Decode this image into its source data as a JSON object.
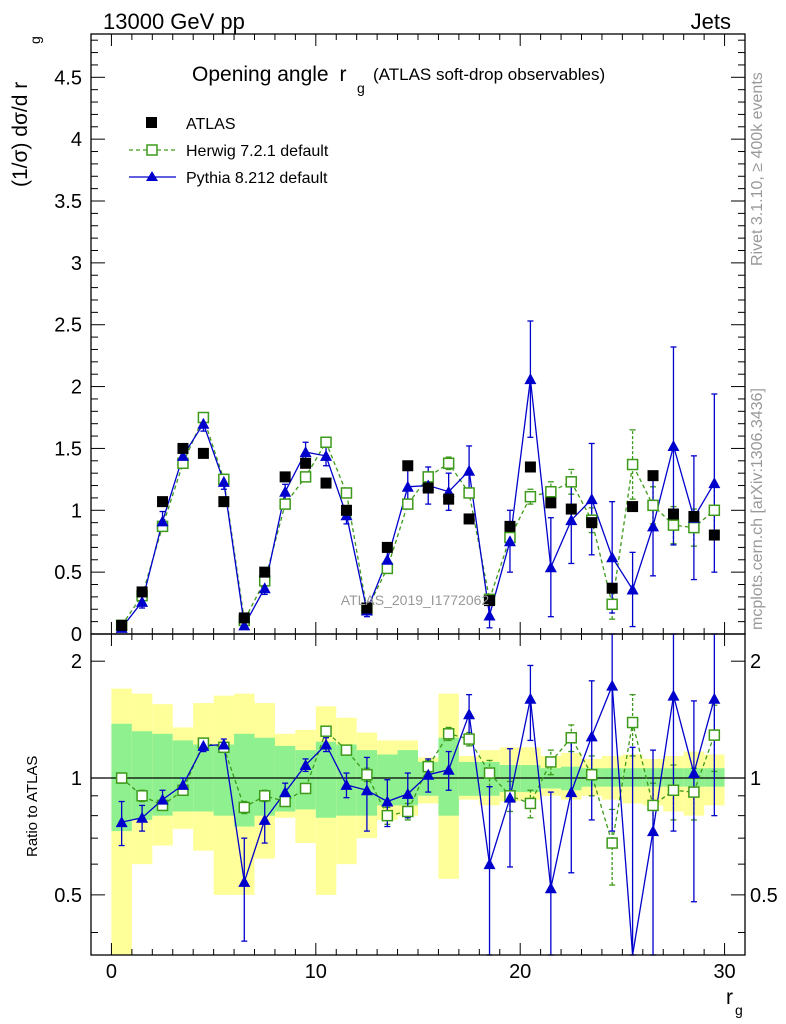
{
  "header": {
    "left": "13000 GeV pp",
    "right": "Jets"
  },
  "side_labels": {
    "rivet": "Rivet 3.1.10, ≥ 400k events",
    "mcplots": "mcplots.cern.ch [arXiv:1306.3436]"
  },
  "chart_data": {
    "type": "scatter",
    "title": "Opening angle",
    "title_symbol": "r",
    "title_subscript": "g",
    "subtitle": "(ATLAS soft-drop observables)",
    "watermark": "ATLAS_2019_I1772062",
    "xlabel": "r",
    "xlabel_sub": "g",
    "ylabel": "(1/σ) dσ/d r",
    "ylabel_sub": "g",
    "ratio_ylabel": "Ratio to ATLAS",
    "xlim": [
      -1,
      31
    ],
    "ylim": [
      0,
      4.85
    ],
    "ratio_ylim": [
      0.35,
      2.35
    ],
    "x_ticks": [
      "0",
      "10",
      "20",
      "30"
    ],
    "y_ticks": [
      "0",
      "0.5",
      "1",
      "1.5",
      "2",
      "2.5",
      "3",
      "3.5",
      "4",
      "4.5"
    ],
    "ratio_ticks": [
      "0.5",
      "1",
      "2"
    ],
    "legend": [
      {
        "name": "ATLAS",
        "color": "#000000",
        "marker": "square-filled"
      },
      {
        "name": "Herwig 7.2.1 default",
        "color": "#3d9a1a",
        "marker": "square-open",
        "dash": true
      },
      {
        "name": "Pythia 8.212 default",
        "color": "#0000cc",
        "marker": "triangle-filled"
      }
    ],
    "x": [
      0.5,
      1.5,
      2.5,
      3.5,
      4.5,
      5.5,
      6.5,
      7.5,
      8.5,
      9.5,
      10.5,
      11.5,
      12.5,
      13.5,
      14.5,
      15.5,
      16.5,
      17.5,
      18.5,
      19.5,
      20.5,
      21.5,
      22.5,
      23.5,
      24.5,
      25.5,
      26.5,
      27.5,
      28.5,
      29.5
    ],
    "atlas": [
      0.07,
      0.34,
      1.07,
      1.5,
      1.46,
      1.07,
      0.13,
      0.5,
      1.27,
      1.38,
      1.22,
      1.0,
      0.21,
      0.7,
      1.36,
      1.18,
      1.09,
      0.93,
      0.27,
      0.87,
      1.35,
      1.06,
      1.01,
      0.9,
      0.37,
      1.03,
      1.28,
      0.97,
      0.95,
      0.8
    ],
    "herwig": [
      0.07,
      0.31,
      0.87,
      1.38,
      1.75,
      1.25,
      0.11,
      0.43,
      1.05,
      1.27,
      1.55,
      1.14,
      0.2,
      0.53,
      1.05,
      1.27,
      1.38,
      1.14,
      0.28,
      0.78,
      1.11,
      1.15,
      1.23,
      0.92,
      0.24,
      1.37,
      1.04,
      0.88,
      0.86,
      1.0
    ],
    "herwig_err": [
      0,
      0,
      0,
      0,
      0,
      0,
      0,
      0,
      0,
      0,
      0,
      0,
      0,
      0,
      0,
      0,
      0.05,
      0,
      0,
      0.05,
      0.06,
      0.08,
      0.1,
      0.1,
      0.12,
      0.28,
      0.15,
      0.15,
      0.15,
      0.22
    ],
    "pythia": [
      0.05,
      0.26,
      0.91,
      1.44,
      1.7,
      1.23,
      0.07,
      0.37,
      1.15,
      1.47,
      1.44,
      0.96,
      0.19,
      0.6,
      1.19,
      1.2,
      1.15,
      1.32,
      0.15,
      0.75,
      2.06,
      0.54,
      0.92,
      1.09,
      0.62,
      0.36,
      0.87,
      1.52,
      0.94,
      1.22
    ],
    "pythia_err": [
      0.02,
      0.05,
      0.08,
      0.06,
      0.06,
      0.06,
      0.03,
      0.05,
      0.06,
      0.08,
      0.08,
      0.07,
      0.05,
      0.07,
      0.15,
      0.15,
      0.15,
      0.2,
      0.1,
      0.25,
      0.47,
      0.4,
      0.35,
      0.45,
      0.45,
      0.3,
      0.4,
      0.8,
      0.5,
      0.72
    ],
    "ratio_herwig": [
      1.0,
      0.9,
      0.85,
      0.93,
      1.23,
      1.2,
      0.84,
      0.9,
      0.87,
      0.94,
      1.32,
      1.18,
      1.02,
      0.8,
      0.82,
      1.07,
      1.3,
      1.26,
      1.03,
      0.9,
      0.86,
      1.1,
      1.27,
      1.02,
      0.68,
      1.39,
      0.85,
      0.93,
      0.92,
      1.29
    ],
    "ratio_herwig_err": [
      0.03,
      0.03,
      0.02,
      0.02,
      0.02,
      0.02,
      0.03,
      0.03,
      0.02,
      0.02,
      0.02,
      0.03,
      0.04,
      0.04,
      0.04,
      0.04,
      0.05,
      0.05,
      0.08,
      0.08,
      0.07,
      0.08,
      0.1,
      0.12,
      0.15,
      0.25,
      0.12,
      0.15,
      0.14,
      0.25
    ],
    "ratio_pythia": [
      0.77,
      0.79,
      0.88,
      0.96,
      1.21,
      1.22,
      0.54,
      0.78,
      0.92,
      1.08,
      1.22,
      0.96,
      0.93,
      0.87,
      0.91,
      1.02,
      1.05,
      1.46,
      0.6,
      0.89,
      1.6,
      0.52,
      0.92,
      1.28,
      1.73,
      0.3,
      0.73,
      1.63,
      1.03,
      1.6
    ],
    "ratio_pythia_err": [
      0.1,
      0.06,
      0.05,
      0.04,
      0.04,
      0.04,
      0.16,
      0.1,
      0.05,
      0.04,
      0.05,
      0.07,
      0.2,
      0.12,
      0.12,
      0.1,
      0.12,
      0.18,
      0.35,
      0.3,
      0.35,
      0.4,
      0.35,
      0.5,
      1.0,
      0.9,
      0.45,
      0.9,
      0.55,
      0.8
    ],
    "band_inner": [
      [
        0.73,
        1.38
      ],
      [
        0.78,
        1.32
      ],
      [
        0.8,
        1.3
      ],
      [
        0.82,
        1.25
      ],
      [
        0.82,
        1.22
      ],
      [
        0.8,
        1.22
      ],
      [
        0.75,
        1.3
      ],
      [
        0.8,
        1.27
      ],
      [
        0.82,
        1.21
      ],
      [
        0.83,
        1.18
      ],
      [
        0.79,
        1.24
      ],
      [
        0.8,
        1.22
      ],
      [
        0.8,
        1.18
      ],
      [
        0.85,
        1.15
      ],
      [
        0.85,
        1.18
      ],
      [
        0.9,
        1.1
      ],
      [
        0.8,
        1.27
      ],
      [
        0.9,
        1.1
      ],
      [
        0.9,
        1.1
      ],
      [
        0.92,
        1.08
      ],
      [
        0.92,
        1.08
      ],
      [
        0.94,
        1.06
      ],
      [
        0.93,
        1.07
      ],
      [
        0.95,
        1.06
      ],
      [
        0.95,
        1.06
      ],
      [
        0.95,
        1.06
      ],
      [
        0.95,
        1.06
      ],
      [
        0.95,
        1.06
      ],
      [
        0.95,
        1.06
      ],
      [
        0.95,
        1.06
      ]
    ],
    "band_outer": [
      [
        0.3,
        1.7
      ],
      [
        0.6,
        1.65
      ],
      [
        0.67,
        1.55
      ],
      [
        0.74,
        1.35
      ],
      [
        0.65,
        1.56
      ],
      [
        0.5,
        1.63
      ],
      [
        0.5,
        1.65
      ],
      [
        0.62,
        1.56
      ],
      [
        0.79,
        1.3
      ],
      [
        0.68,
        1.33
      ],
      [
        0.5,
        1.53
      ],
      [
        0.6,
        1.43
      ],
      [
        0.7,
        1.31
      ],
      [
        0.78,
        1.25
      ],
      [
        0.8,
        1.25
      ],
      [
        0.86,
        1.13
      ],
      [
        0.55,
        1.65
      ],
      [
        0.88,
        1.14
      ],
      [
        0.85,
        1.18
      ],
      [
        0.87,
        1.2
      ],
      [
        0.88,
        1.2
      ],
      [
        0.9,
        1.14
      ],
      [
        0.88,
        1.16
      ],
      [
        0.9,
        1.12
      ],
      [
        0.88,
        1.14
      ],
      [
        0.86,
        1.15
      ],
      [
        0.85,
        1.12
      ],
      [
        0.82,
        1.14
      ],
      [
        0.8,
        1.17
      ],
      [
        0.85,
        1.15
      ]
    ],
    "colors": {
      "atlas": "#000000",
      "herwig": "#3d9a1a",
      "pythia": "#0000cc",
      "band_inner": "#8ef08e",
      "band_outer": "#ffff99"
    }
  }
}
